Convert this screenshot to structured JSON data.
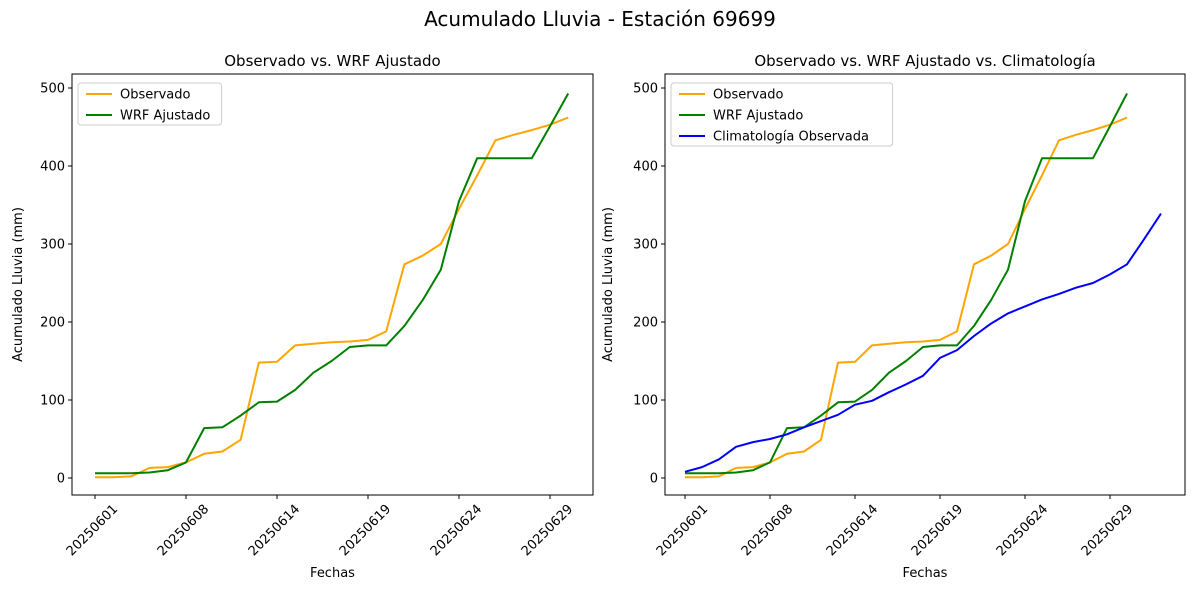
{
  "figure": {
    "title": "Acumulado Lluvia - Estación 69699",
    "background": "#ffffff",
    "text_color": "#000000"
  },
  "chart_data": [
    {
      "type": "line",
      "title": "Observado vs. WRF Ajustado",
      "xlabel": "Fechas",
      "ylabel": "Acumulado Lluvia (mm)",
      "ylim": [
        0,
        500
      ],
      "yticks": [
        0,
        100,
        200,
        300,
        400,
        500
      ],
      "x_tick_labels": [
        "20250601",
        "20250608",
        "20250614",
        "20250619",
        "20250624",
        "20250629"
      ],
      "x_tick_indices": [
        0,
        5,
        10,
        15,
        20,
        25
      ],
      "grid": false,
      "legend_position": "upper left",
      "series": [
        {
          "name": "Observado",
          "color": "#FFA500",
          "values": [
            1,
            1,
            2,
            13,
            14,
            20,
            31,
            34,
            49,
            148,
            149,
            170,
            172,
            174,
            175,
            177,
            188,
            274,
            285,
            300,
            345,
            388,
            433,
            440,
            446,
            453,
            462
          ]
        },
        {
          "name": "WRF Ajustado",
          "color": "#008000",
          "values": [
            6,
            6,
            6,
            7,
            10,
            20,
            64,
            65,
            80,
            97,
            98,
            113,
            135,
            150,
            168,
            170,
            170,
            195,
            228,
            267,
            355,
            410,
            410,
            410,
            410,
            451,
            493
          ]
        }
      ]
    },
    {
      "type": "line",
      "title": "Observado vs. WRF Ajustado vs. Climatología",
      "xlabel": "Fechas",
      "ylabel": "Acumulado Lluvia (mm)",
      "ylim": [
        0,
        500
      ],
      "yticks": [
        0,
        100,
        200,
        300,
        400,
        500
      ],
      "x_tick_labels": [
        "20250601",
        "20250608",
        "20250614",
        "20250619",
        "20250624",
        "20250629"
      ],
      "x_tick_indices": [
        0,
        5,
        10,
        15,
        20,
        25
      ],
      "grid": false,
      "legend_position": "upper left",
      "series": [
        {
          "name": "Observado",
          "color": "#FFA500",
          "values": [
            1,
            1,
            2,
            13,
            14,
            20,
            31,
            34,
            49,
            148,
            149,
            170,
            172,
            174,
            175,
            177,
            188,
            274,
            285,
            300,
            345,
            388,
            433,
            440,
            446,
            453,
            462
          ]
        },
        {
          "name": "WRF Ajustado",
          "color": "#008000",
          "values": [
            6,
            6,
            6,
            7,
            10,
            20,
            64,
            65,
            80,
            97,
            98,
            113,
            135,
            150,
            168,
            170,
            170,
            195,
            228,
            267,
            355,
            410,
            410,
            410,
            410,
            451,
            493
          ]
        },
        {
          "name": "Climatología Observada",
          "color": "#0000FF",
          "values": [
            8,
            14,
            24,
            40,
            46,
            50,
            56,
            65,
            73,
            81,
            94,
            99,
            110,
            120,
            131,
            154,
            164,
            182,
            198,
            211,
            220,
            229,
            236,
            244,
            250,
            261,
            274,
            306,
            339
          ]
        }
      ]
    }
  ]
}
